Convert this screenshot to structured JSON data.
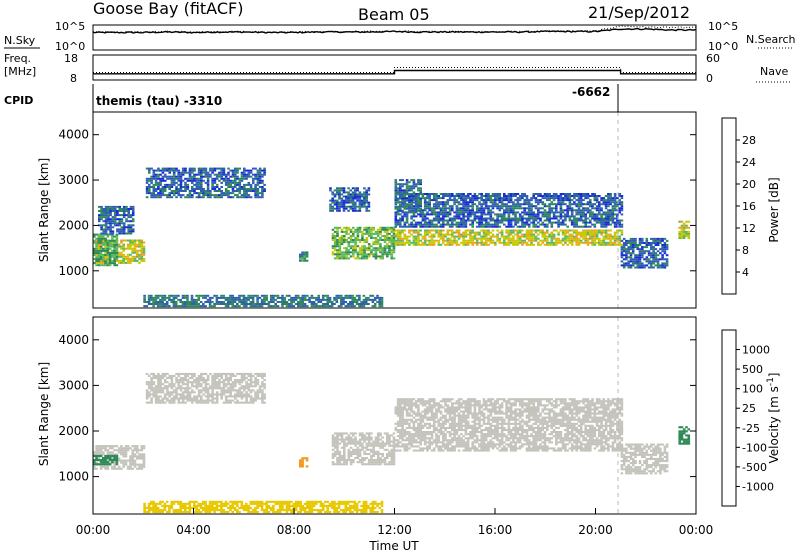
{
  "header": {
    "station": "Goose Bay (fitACF)",
    "beam": "Beam 05",
    "date": "21/Sep/2012"
  },
  "noise_panel": {
    "left_label": "N.Sky",
    "left_ticks": [
      "10^5",
      "10^0"
    ],
    "right_ticks": [
      "10^5",
      "10^0"
    ],
    "right_label": "N.Search"
  },
  "freq_panel": {
    "left_label_line1": "Freq.",
    "left_label_line2": "[MHz]",
    "left_ticks": [
      "18",
      "8"
    ],
    "right_ticks": [
      "60",
      "0"
    ],
    "right_label": "Nave"
  },
  "cpid_panel": {
    "label": "CPID",
    "annotations": [
      "themis (tau) -3310",
      "-6662"
    ]
  },
  "x_axis": {
    "title": "Time UT",
    "tick_labels": [
      "00:00",
      "04:00",
      "08:00",
      "12:00",
      "16:00",
      "20:00",
      "00:00"
    ]
  },
  "y_axis": {
    "title": "Slant Range [km]",
    "tick_labels": [
      "1000",
      "2000",
      "3000",
      "4000"
    ]
  },
  "power_colorbar": {
    "title": "Power [dB]",
    "tick_labels": [
      "4",
      "8",
      "12",
      "16",
      "20",
      "24",
      "28"
    ],
    "colors": [
      "#1a2bd6",
      "#2f5fb0",
      "#2e8b57",
      "#5cb85c",
      "#c8c800",
      "#f0a020",
      "#f06a10",
      "#e01b1b"
    ]
  },
  "velocity_colorbar": {
    "title": "Velocity [m s^-1]",
    "tick_labels": [
      "1000",
      "500",
      "100",
      "25",
      "-25",
      "-100",
      "-500",
      "-1000"
    ],
    "colors": [
      "#1a2bd6",
      "#2f5fb0",
      "#2e8b57",
      "#6ad04a",
      "#c4c4bc",
      "#e8c800",
      "#f09a20",
      "#f06a10",
      "#e01b1b"
    ]
  },
  "chart_data": [
    {
      "type": "line",
      "title": "Goose Bay (fitACF) Beam 05 21/Sep/2012",
      "x_range_hours_ut": [
        0,
        24
      ],
      "series": [
        {
          "name": "N.Sky",
          "style": "solid",
          "level_log10": [
            3.5,
            3.5,
            3.5,
            3.6,
            3.5,
            3.6,
            3.6,
            3.5,
            3.5,
            3.6,
            3.6,
            3.6,
            3.7,
            3.6,
            3.6,
            3.6,
            3.6,
            3.6,
            3.7,
            3.7,
            3.7,
            4.2,
            4.2,
            4.0,
            4.0
          ],
          "x_hours": [
            0,
            1,
            2,
            3,
            4,
            5,
            6,
            7,
            8,
            9,
            10,
            11,
            12,
            13,
            14,
            15,
            16,
            17,
            18,
            19,
            20,
            21,
            22,
            23,
            24
          ]
        },
        {
          "name": "N.Search",
          "style": "dotted",
          "level_log10": [
            3.6,
            3.6,
            3.6,
            3.7,
            3.6,
            3.7,
            3.7,
            3.6,
            3.6,
            3.7,
            3.7,
            3.7,
            3.8,
            3.7,
            3.7,
            3.7,
            3.7,
            3.7,
            3.8,
            3.8,
            3.8,
            4.8,
            4.6,
            4.5,
            4.5
          ],
          "x_hours": [
            0,
            1,
            2,
            3,
            4,
            5,
            6,
            7,
            8,
            9,
            10,
            11,
            12,
            13,
            14,
            15,
            16,
            17,
            18,
            19,
            20,
            21,
            22,
            23,
            24
          ]
        }
      ],
      "ylabel": "N.Sky"
    },
    {
      "type": "line",
      "ylabel": "Freq. [MHz]",
      "ylim": [
        8,
        18
      ],
      "series": [
        {
          "name": "Freq.",
          "style": "solid",
          "x_hours": [
            0,
            12,
            12,
            21,
            21,
            24
          ],
          "values": [
            10.5,
            10.5,
            11.8,
            11.8,
            10.5,
            10.5
          ]
        },
        {
          "name": "Nave",
          "style": "dotted",
          "x_hours": [
            0,
            12,
            12,
            21,
            21,
            24
          ],
          "values_nave": [
            18,
            18,
            30,
            30,
            18,
            18
          ]
        }
      ]
    },
    {
      "type": "heatmap",
      "title": "Power [dB]",
      "xlabel": "Time UT",
      "ylabel": "Slant Range [km]",
      "xlim_hours": [
        0,
        24
      ],
      "ylim_km": [
        180,
        4500
      ],
      "regions": [
        {
          "t": [
            0.0,
            2.0
          ],
          "r": [
            1150,
            1650
          ],
          "db": 18
        },
        {
          "t": [
            0.0,
            0.9
          ],
          "r": [
            1100,
            1800
          ],
          "db": 12
        },
        {
          "t": [
            2.1,
            6.8
          ],
          "r": [
            2600,
            3250
          ],
          "db": 6
        },
        {
          "t": [
            0.2,
            1.6
          ],
          "r": [
            1800,
            2400
          ],
          "db": 6
        },
        {
          "t": [
            9.5,
            12.0
          ],
          "r": [
            1250,
            1950
          ],
          "db": 14
        },
        {
          "t": [
            9.4,
            11.0
          ],
          "r": [
            2300,
            2800
          ],
          "db": 6
        },
        {
          "t": [
            12.0,
            21.0
          ],
          "r": [
            1550,
            1900
          ],
          "db": 18
        },
        {
          "t": [
            12.0,
            21.0
          ],
          "r": [
            1950,
            2700
          ],
          "db": 6
        },
        {
          "t": [
            12.0,
            13.0
          ],
          "r": [
            2300,
            3000
          ],
          "db": 7
        },
        {
          "t": [
            21.0,
            22.8
          ],
          "r": [
            1050,
            1700
          ],
          "db": 6
        },
        {
          "t": [
            2.0,
            11.5
          ],
          "r": [
            200,
            450
          ],
          "db": 8
        },
        {
          "t": [
            8.2,
            8.5
          ],
          "r": [
            1200,
            1400
          ],
          "db": 10
        },
        {
          "t": [
            23.3,
            23.7
          ],
          "r": [
            1700,
            2100
          ],
          "db": 18
        }
      ]
    },
    {
      "type": "heatmap",
      "title": "Velocity [m s^-1]",
      "xlabel": "Time UT",
      "ylabel": "Slant Range [km]",
      "xlim_hours": [
        0,
        24
      ],
      "ylim_km": [
        180,
        4500
      ],
      "regions": [
        {
          "t": [
            0.0,
            2.0
          ],
          "r": [
            1150,
            1650
          ],
          "vel": 0
        },
        {
          "t": [
            0.0,
            0.9
          ],
          "r": [
            1250,
            1450
          ],
          "vel": 150
        },
        {
          "t": [
            2.1,
            6.8
          ],
          "r": [
            2600,
            3250
          ],
          "vel": 0
        },
        {
          "t": [
            9.5,
            12.0
          ],
          "r": [
            1250,
            1950
          ],
          "vel": 0
        },
        {
          "t": [
            12.0,
            21.0
          ],
          "r": [
            1550,
            2700
          ],
          "vel": 0
        },
        {
          "t": [
            21.0,
            22.8
          ],
          "r": [
            1050,
            1700
          ],
          "vel": 0
        },
        {
          "t": [
            2.0,
            11.5
          ],
          "r": [
            200,
            450
          ],
          "vel": -60
        },
        {
          "t": [
            8.2,
            8.5
          ],
          "r": [
            1200,
            1400
          ],
          "vel": -300
        },
        {
          "t": [
            23.3,
            23.7
          ],
          "r": [
            1700,
            2100
          ],
          "vel": 150
        }
      ]
    }
  ]
}
